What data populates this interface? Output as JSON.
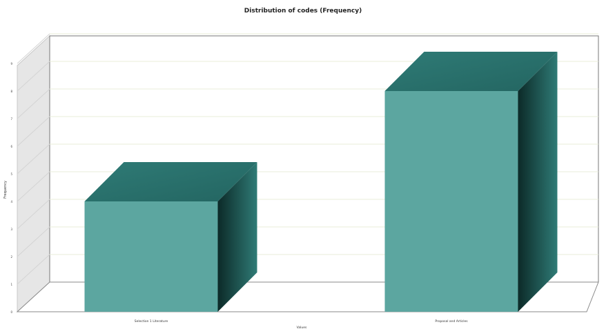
{
  "chart_data": {
    "type": "bar",
    "title": "Distribution of codes (Frequency)",
    "xlabel": "Values",
    "ylabel": "Frequency",
    "categories": [
      "Selection 1 Literature",
      "Proposal and Articles"
    ],
    "values": [
      4,
      8
    ],
    "ylim": [
      0,
      9
    ],
    "yticks": [
      0,
      1,
      2,
      3,
      4,
      5,
      6,
      7,
      8,
      9
    ],
    "grid": true,
    "legend": "none",
    "style": "3d",
    "bar_color": "#5ca6a0",
    "bar_top_color": "#2f7b76",
    "bar_side_dark": "#0c2a28",
    "wall_color": "#e6e6e6"
  }
}
